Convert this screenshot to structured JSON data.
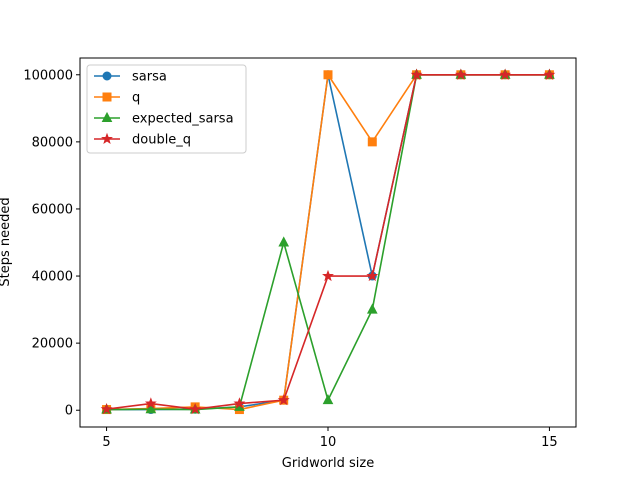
{
  "chart_data": {
    "type": "line",
    "xlabel": "Gridworld size",
    "ylabel": "Steps needed",
    "x": [
      5,
      6,
      7,
      8,
      9,
      10,
      11,
      12,
      13,
      14,
      15
    ],
    "xlim": [
      4.4,
      15.6
    ],
    "ylim": [
      -5000,
      105000
    ],
    "x_ticks": [
      5,
      10,
      15
    ],
    "y_ticks": [
      0,
      20000,
      40000,
      60000,
      80000,
      100000
    ],
    "grid": false,
    "legend_position": "upper-left",
    "series": [
      {
        "name": "sarsa",
        "color": "#1f77b4",
        "marker": "circle",
        "values": [
          200,
          200,
          300,
          1000,
          3000,
          100000,
          40000,
          100000,
          100000,
          100000,
          100000
        ]
      },
      {
        "name": "q",
        "color": "#ff7f0e",
        "marker": "square",
        "values": [
          200,
          500,
          1000,
          200,
          3000,
          100000,
          80000,
          100000,
          100000,
          100000,
          100000
        ]
      },
      {
        "name": "expected_sarsa",
        "color": "#2ca02c",
        "marker": "triangle",
        "values": [
          200,
          300,
          200,
          1000,
          50000,
          3000,
          30000,
          100000,
          100000,
          100000,
          100000
        ]
      },
      {
        "name": "double_q",
        "color": "#d62728",
        "marker": "star",
        "values": [
          300,
          2000,
          300,
          2000,
          3000,
          40000,
          40000,
          100000,
          100000,
          100000,
          100000
        ]
      }
    ]
  }
}
